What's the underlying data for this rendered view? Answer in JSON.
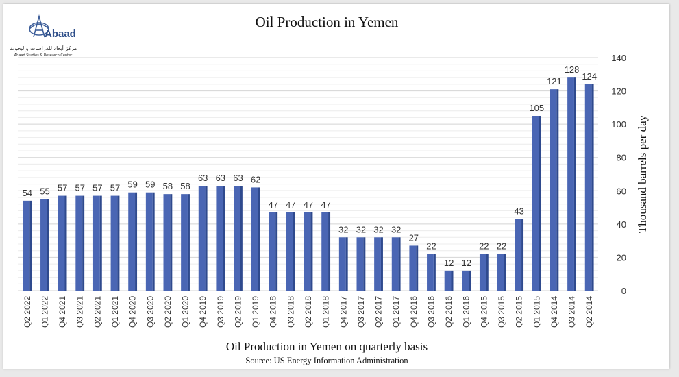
{
  "logo": {
    "brand": "Abaad",
    "arabic": "مركز أبعاد للدراسات والبحوث",
    "english": "Abaad Studies & Research Center"
  },
  "chart_data": {
    "type": "bar",
    "title": "Oil Production in Yemen",
    "xlabel": "Oil Production in Yemen on quarterly basis",
    "ylabel": "Thousand barrels per day",
    "source": "Source: US Energy Information Administration",
    "ylim": [
      0,
      140
    ],
    "yticks": [
      0,
      20,
      40,
      60,
      80,
      100,
      120,
      140
    ],
    "y_axis_side": "right",
    "grid": true,
    "bar_color": "#4a66b4",
    "categories": [
      "Q2 2022",
      "Q1 2022",
      "Q4 2021",
      "Q3 2021",
      "Q2 2021",
      "Q1 2021",
      "Q4 2020",
      "Q3 2020",
      "Q2 2020",
      "Q1 2020",
      "Q4 2019",
      "Q3 2019",
      "Q2 2019",
      "Q1 2019",
      "Q4 2018",
      "Q3 2018",
      "Q2 2018",
      "Q1 2018",
      "Q4 2017",
      "Q3 2017",
      "Q2 2017",
      "Q1 2017",
      "Q4 2016",
      "Q3 2016",
      "Q2 2016",
      "Q1 2016",
      "Q4 2015",
      "Q3 2015",
      "Q2 2015",
      "Q1 2015",
      "Q4 2014",
      "Q3 2014",
      "Q2 2014"
    ],
    "values": [
      54,
      55,
      57,
      57,
      57,
      57,
      59,
      59,
      58,
      58,
      63,
      63,
      63,
      62,
      47,
      47,
      47,
      47,
      32,
      32,
      32,
      32,
      27,
      22,
      12,
      12,
      22,
      22,
      43,
      105,
      121,
      128,
      124
    ]
  }
}
